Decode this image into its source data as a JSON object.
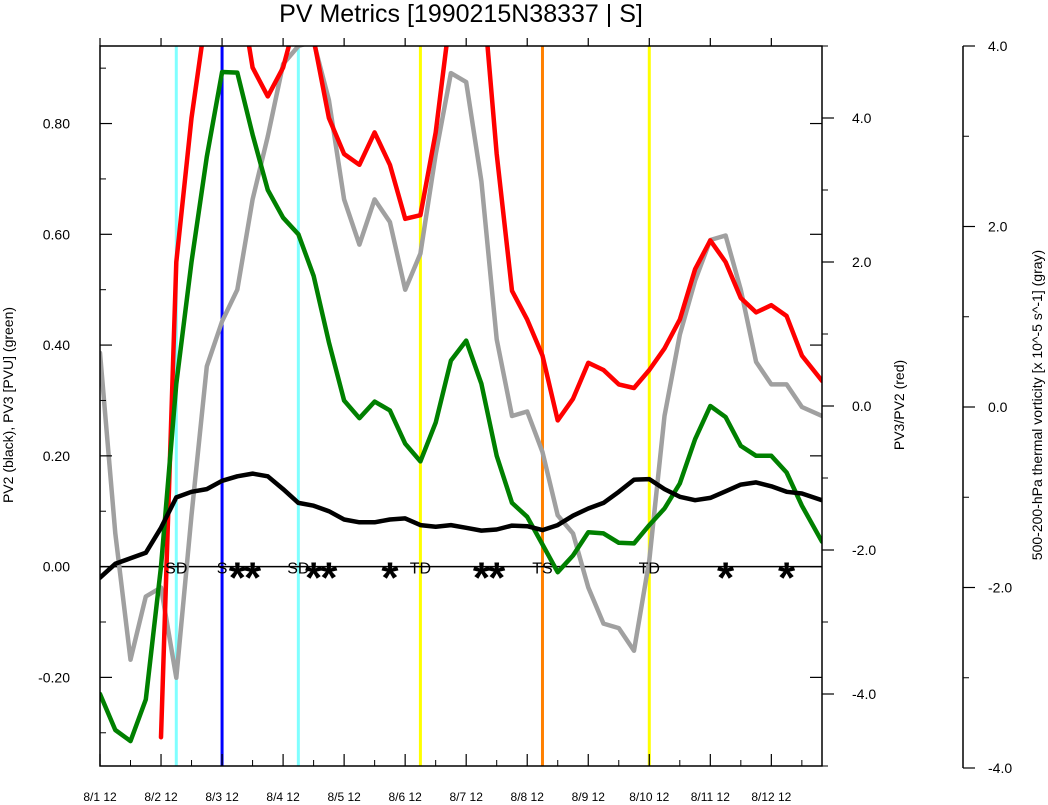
{
  "chart_data": {
    "type": "line",
    "title": "PV Metrics [1990215N38337 | S]",
    "ylabel_left": "PV2 (black), PV3 [PVU] (green)",
    "ylabel_right": "PV3/PV2 (red)",
    "ylabel_far_right": "500-200-hPa thermal vorticity [x 10^-5 s^-1] (gray)",
    "xlim_days": [
      0,
      11.83
    ],
    "x_tick_labels": [
      "8/1 12",
      "8/2 12",
      "8/3 12",
      "8/4 12",
      "8/5 12",
      "8/6 12",
      "8/7 12",
      "8/8 12",
      "8/9 12",
      "8/10 12",
      "8/11 12",
      "8/12 12"
    ],
    "ylim_left": [
      -0.36,
      0.94
    ],
    "ylim_right": [
      -5.0,
      5.0
    ],
    "ylim_far_right": [
      -4.0,
      4.0
    ],
    "left_ticks": [
      -0.2,
      0.0,
      0.2,
      0.4,
      0.6,
      0.8
    ],
    "left_tick_labels": [
      "-0.20",
      "0.00",
      "0.20",
      "0.40",
      "0.60",
      "0.80"
    ],
    "right_ticks": [
      -4.0,
      -2.0,
      0.0,
      2.0,
      4.0
    ],
    "right_tick_labels": [
      "-4.0",
      "-2.0",
      "0.0",
      "2.0",
      "4.0"
    ],
    "far_right_ticks": [
      -4.0,
      -2.0,
      0.0,
      2.0,
      4.0
    ],
    "far_right_tick_labels": [
      "-4.0",
      "-2.0",
      "0.0",
      "2.0",
      "4.0"
    ],
    "grid": false,
    "series": [
      {
        "name": "PV2",
        "color": "#000000",
        "axis": "left",
        "x": [
          0,
          0.25,
          0.5,
          0.75,
          1.0,
          1.25,
          1.5,
          1.75,
          2.0,
          2.25,
          2.5,
          2.75,
          3.0,
          3.25,
          3.5,
          3.75,
          4.0,
          4.25,
          4.5,
          4.75,
          5.0,
          5.25,
          5.5,
          5.75,
          6.0,
          6.25,
          6.5,
          6.75,
          7.0,
          7.25,
          7.5,
          7.75,
          8.0,
          8.25,
          8.5,
          8.75,
          9.0,
          9.25,
          9.5,
          9.75,
          10.0,
          10.25,
          10.5,
          10.75,
          11.0,
          11.25,
          11.5,
          11.83
        ],
        "y": [
          -0.02,
          0.005,
          0.015,
          0.025,
          0.07,
          0.125,
          0.135,
          0.14,
          0.155,
          0.163,
          0.168,
          0.163,
          0.14,
          0.115,
          0.11,
          0.1,
          0.085,
          0.08,
          0.08,
          0.085,
          0.087,
          0.075,
          0.072,
          0.075,
          0.07,
          0.065,
          0.067,
          0.074,
          0.073,
          0.066,
          0.075,
          0.092,
          0.105,
          0.115,
          0.135,
          0.157,
          0.158,
          0.14,
          0.126,
          0.12,
          0.124,
          0.136,
          0.148,
          0.152,
          0.145,
          0.135,
          0.132,
          0.12
        ]
      },
      {
        "name": "PV3",
        "color": "#008000",
        "axis": "left",
        "x": [
          0,
          0.25,
          0.5,
          0.75,
          1.0,
          1.25,
          1.5,
          1.75,
          2.0,
          2.25,
          2.5,
          2.75,
          3.0,
          3.25,
          3.5,
          3.75,
          4.0,
          4.25,
          4.5,
          4.75,
          5.0,
          5.25,
          5.5,
          5.75,
          6.0,
          6.25,
          6.5,
          6.75,
          7.0,
          7.25,
          7.5,
          7.75,
          8.0,
          8.25,
          8.5,
          8.75,
          9.0,
          9.25,
          9.5,
          9.75,
          10.0,
          10.25,
          10.5,
          10.75,
          11.0,
          11.25,
          11.5,
          11.83
        ],
        "y": [
          -0.23,
          -0.295,
          -0.315,
          -0.24,
          0.0,
          0.33,
          0.55,
          0.74,
          0.893,
          0.892,
          0.78,
          0.68,
          0.63,
          0.6,
          0.525,
          0.405,
          0.3,
          0.268,
          0.298,
          0.282,
          0.222,
          0.19,
          0.26,
          0.372,
          0.408,
          0.33,
          0.2,
          0.115,
          0.09,
          0.04,
          -0.01,
          0.02,
          0.062,
          0.06,
          0.043,
          0.042,
          0.075,
          0.105,
          0.15,
          0.23,
          0.29,
          0.27,
          0.218,
          0.2,
          0.2,
          0.17,
          0.11,
          0.045
        ]
      },
      {
        "name": "PV3/PV2",
        "color": "#ff0000",
        "axis": "right",
        "x": [
          1.0,
          1.25,
          1.5,
          1.75,
          2.0,
          2.25,
          2.5,
          2.75,
          3.0,
          3.25,
          3.5,
          3.75,
          4.0,
          4.25,
          4.5,
          4.75,
          5.0,
          5.25,
          5.5,
          5.75,
          6.0,
          6.25,
          6.5,
          6.75,
          7.0,
          7.25,
          7.5,
          7.75,
          8.0,
          8.25,
          8.5,
          8.75,
          9.0,
          9.25,
          9.5,
          9.75,
          10.0,
          10.25,
          10.5,
          10.75,
          11.0,
          11.25,
          11.5,
          11.83
        ],
        "y": [
          -4.6,
          2.0,
          4.0,
          5.5,
          6.5,
          6.0,
          4.7,
          4.3,
          4.7,
          5.5,
          5.1,
          4.0,
          3.5,
          3.35,
          3.8,
          3.35,
          2.6,
          2.65,
          3.8,
          5.5,
          6.5,
          6.0,
          3.5,
          1.6,
          1.2,
          0.7,
          -0.2,
          0.1,
          0.6,
          0.5,
          0.3,
          0.25,
          0.5,
          0.8,
          1.2,
          1.9,
          2.3,
          2.0,
          1.5,
          1.3,
          1.4,
          1.25,
          0.7,
          0.35
        ]
      },
      {
        "name": "thermal vorticity",
        "color": "#a0a0a0",
        "axis": "far_right",
        "x": [
          0,
          0.25,
          0.5,
          0.75,
          1.0,
          1.25,
          1.5,
          1.75,
          2.0,
          2.25,
          2.5,
          2.75,
          3.0,
          3.25,
          3.5,
          3.75,
          4.0,
          4.25,
          4.5,
          4.75,
          5.0,
          5.25,
          5.5,
          5.75,
          6.0,
          6.25,
          6.5,
          6.75,
          7.0,
          7.25,
          7.5,
          7.75,
          8.0,
          8.25,
          8.5,
          8.75,
          9.0,
          9.25,
          9.5,
          9.75,
          10.0,
          10.25,
          10.5,
          10.75,
          11.0,
          11.25,
          11.5,
          11.83
        ],
        "y": [
          0.6,
          -1.4,
          -2.8,
          -2.1,
          -2.0,
          -3.0,
          -1.2,
          0.45,
          0.95,
          1.3,
          2.3,
          3.0,
          3.8,
          4.0,
          4.05,
          3.4,
          2.3,
          1.8,
          2.3,
          2.05,
          1.3,
          1.7,
          2.8,
          3.7,
          3.6,
          2.5,
          0.75,
          -0.1,
          -0.05,
          -0.5,
          -1.2,
          -1.4,
          -2.0,
          -2.4,
          -2.45,
          -2.7,
          -1.7,
          -0.1,
          0.8,
          1.4,
          1.85,
          1.9,
          1.3,
          0.5,
          0.25,
          0.25,
          0.0,
          -0.1
        ]
      }
    ],
    "vertical_lines": [
      {
        "x": 1.25,
        "color": "#80ffff"
      },
      {
        "x": 2.0,
        "color": "#0000ff"
      },
      {
        "x": 3.25,
        "color": "#80ffff"
      },
      {
        "x": 5.25,
        "color": "#ffff00"
      },
      {
        "x": 7.25,
        "color": "#ff8000"
      },
      {
        "x": 9.0,
        "color": "#ffff00"
      }
    ],
    "stage_labels": [
      {
        "x": 1.25,
        "text": "SD"
      },
      {
        "x": 2.0,
        "text": "S"
      },
      {
        "x": 3.25,
        "text": "SD"
      },
      {
        "x": 5.25,
        "text": "TD"
      },
      {
        "x": 7.25,
        "text": "TS"
      },
      {
        "x": 9.0,
        "text": "TD"
      }
    ],
    "star_marks": [
      {
        "x": 2.25,
        "symbol": "*"
      },
      {
        "x": 2.5,
        "symbol": "*"
      },
      {
        "x": 3.5,
        "symbol": "*"
      },
      {
        "x": 3.75,
        "symbol": "*"
      },
      {
        "x": 4.75,
        "symbol": "*"
      },
      {
        "x": 6.25,
        "symbol": "*"
      },
      {
        "x": 6.5,
        "symbol": "*"
      },
      {
        "x": 10.25,
        "symbol": "*"
      },
      {
        "x": 11.25,
        "symbol": "*"
      }
    ]
  }
}
